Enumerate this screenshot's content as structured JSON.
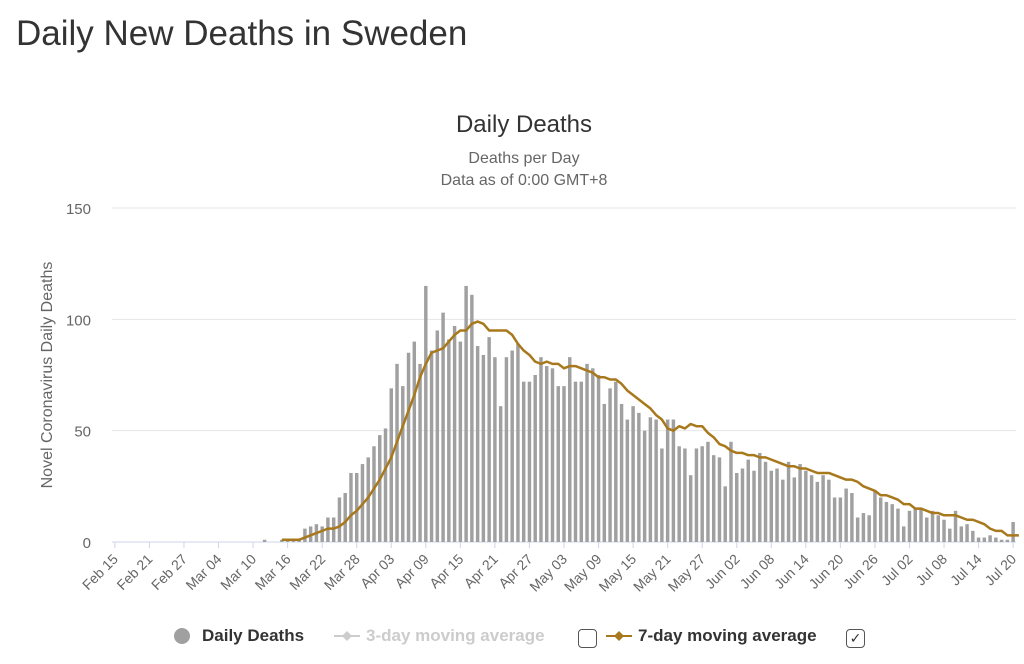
{
  "page": {
    "title": "Daily New Deaths in Sweden"
  },
  "colors": {
    "bars": "#a0a0a0",
    "ma7": "#a8781c",
    "ma3": "#cccccc",
    "grid": "#e6e6e6"
  },
  "legend": {
    "items": [
      {
        "label": "Daily Deaths",
        "icon": "circle-marker-icon",
        "enabled": true
      },
      {
        "label": "3-day moving average",
        "icon": "line-marker-icon",
        "enabled": false
      },
      {
        "label": "7-day moving average",
        "icon": "line-marker-icon",
        "enabled": true
      }
    ],
    "checkbox_icons": [
      "checkbox-unchecked-icon",
      "checkbox-checked-icon"
    ]
  },
  "chart_data": {
    "type": "bar",
    "title": "Daily Deaths",
    "subtitle": "Deaths per Day",
    "subtitle2": "Data as of 0:00 GMT+8",
    "ylabel": "Novel Coronavirus Daily Deaths",
    "xlabel": "",
    "ylim": [
      0,
      150
    ],
    "yticks": [
      0,
      50,
      100,
      150
    ],
    "grid": true,
    "legend_position": "bottom",
    "x_start": "Feb 15",
    "x_tick_labels": [
      "Feb 15",
      "Feb 21",
      "Feb 27",
      "Mar 04",
      "Mar 10",
      "Mar 16",
      "Mar 22",
      "Mar 28",
      "Apr 03",
      "Apr 09",
      "Apr 15",
      "Apr 21",
      "Apr 27",
      "May 03",
      "May 09",
      "May 15",
      "May 21",
      "May 27",
      "Jun 02",
      "Jun 08",
      "Jun 14",
      "Jun 20",
      "Jun 26",
      "Jul 02",
      "Jul 08",
      "Jul 14",
      "Jul 20"
    ],
    "series": [
      {
        "name": "Daily Deaths",
        "type": "bar",
        "values": [
          0,
          0,
          0,
          0,
          0,
          0,
          0,
          0,
          0,
          0,
          0,
          0,
          0,
          0,
          0,
          0,
          0,
          0,
          0,
          0,
          0,
          0,
          0,
          0,
          0,
          0,
          1,
          0,
          0,
          1,
          1,
          1,
          1,
          6,
          7,
          8,
          7,
          11,
          11,
          20,
          22,
          31,
          31,
          35,
          38,
          43,
          48,
          51,
          69,
          80,
          70,
          85,
          90,
          80,
          115,
          86,
          95,
          103,
          91,
          97,
          90,
          115,
          111,
          88,
          84,
          92,
          83,
          61,
          83,
          86,
          89,
          72,
          72,
          75,
          83,
          79,
          78,
          70,
          70,
          83,
          72,
          72,
          80,
          78,
          75,
          62,
          69,
          72,
          62,
          55,
          61,
          58,
          50,
          56,
          55,
          42,
          55,
          55,
          43,
          42,
          30,
          42,
          43,
          45,
          39,
          38,
          25,
          45,
          31,
          33,
          37,
          32,
          40,
          36,
          32,
          33,
          28,
          36,
          29,
          35,
          32,
          30,
          27,
          30,
          28,
          20,
          20,
          24,
          22,
          11,
          13,
          12,
          23,
          20,
          18,
          17,
          15,
          7,
          14,
          15,
          15,
          11,
          14,
          12,
          10,
          6,
          14,
          7,
          8,
          5,
          2,
          2,
          3,
          2,
          1,
          1,
          9
        ]
      },
      {
        "name": "7-day moving average",
        "type": "line",
        "values": [
          null,
          null,
          null,
          null,
          null,
          null,
          null,
          null,
          null,
          null,
          null,
          null,
          null,
          null,
          null,
          null,
          null,
          null,
          null,
          null,
          null,
          null,
          null,
          null,
          null,
          null,
          null,
          null,
          null,
          1,
          1,
          1,
          1,
          2,
          3,
          4,
          5,
          6,
          6,
          7,
          9,
          12,
          14,
          17,
          20,
          24,
          28,
          33,
          38,
          45,
          52,
          59,
          66,
          74,
          80,
          85,
          86,
          87,
          90,
          93,
          95,
          95,
          98,
          99,
          98,
          95,
          95,
          95,
          95,
          93,
          89,
          86,
          84,
          81,
          80,
          81,
          80,
          80,
          78,
          79,
          79,
          78,
          77,
          76,
          74,
          74,
          73,
          73,
          71,
          68,
          66,
          64,
          62,
          60,
          57,
          55,
          51,
          50,
          52,
          51,
          53,
          52,
          52,
          49,
          47,
          44,
          43,
          41,
          40,
          40,
          39,
          39,
          38,
          38,
          37,
          36,
          35,
          34,
          34,
          33,
          33,
          32,
          31,
          31,
          31,
          30,
          29,
          28,
          28,
          27,
          25,
          24,
          23,
          21,
          21,
          20,
          19,
          17,
          17,
          15,
          15,
          14,
          13,
          13,
          12,
          12,
          12,
          11,
          10,
          10,
          9,
          8,
          6,
          5,
          5,
          3,
          3,
          3
        ]
      }
    ]
  }
}
